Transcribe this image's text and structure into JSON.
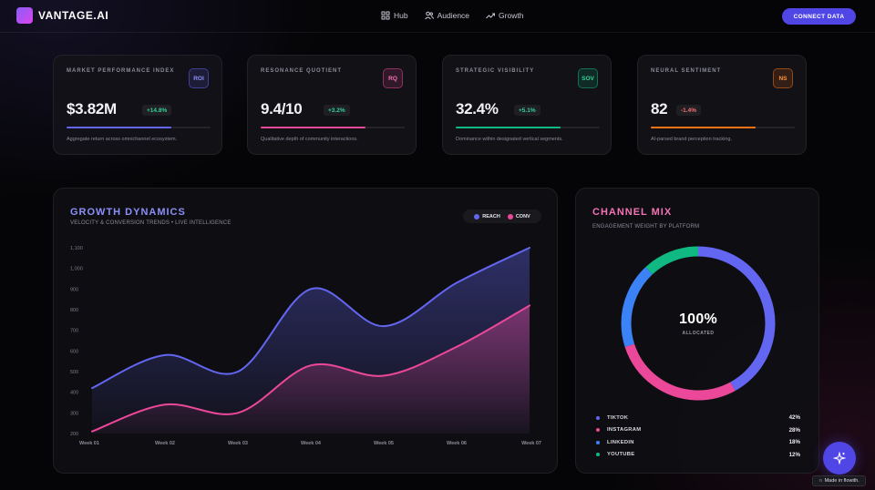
{
  "header": {
    "brand": "VANTAGE.AI",
    "nav": [
      {
        "label": "Hub",
        "icon": "grid-icon"
      },
      {
        "label": "Audience",
        "icon": "users-icon"
      },
      {
        "label": "Growth",
        "icon": "trend-up-icon"
      }
    ],
    "cta": "CONNECT DATA"
  },
  "kpis": [
    {
      "title": "MARKET PERFORMANCE INDEX",
      "badge": "ROI",
      "value": "$3.82M",
      "change": "+14.8%",
      "description": "Aggregate return across omnichannel ecosystem.",
      "color": "#6366f1",
      "progress": 0.73
    },
    {
      "title": "RESONANCE QUOTIENT",
      "badge": "RQ",
      "value": "9.4/10",
      "change": "+3.2%",
      "description": "Qualitative depth of community interactions.",
      "color": "#ec4899",
      "progress": 0.73
    },
    {
      "title": "STRATEGIC VISIBILITY",
      "badge": "SOV",
      "value": "32.4%",
      "change": "+5.1%",
      "description": "Dominance within designated vertical segments.",
      "color": "#10b981",
      "progress": 0.73
    },
    {
      "title": "NEURAL SENTIMENT",
      "badge": "NS",
      "value": "82",
      "change": "-1.4%",
      "description": "AI-parsed brand perception tracking.",
      "color": "#f97316",
      "progress": 0.73
    }
  ],
  "growth": {
    "title": "GROWTH DYNAMICS",
    "subtitle": "VELOCITY & CONVERSION TRENDS • LIVE INTELLIGENCE",
    "legend": [
      {
        "label": "REACH",
        "color": "#6366f1"
      },
      {
        "label": "CONV",
        "color": "#ec4899"
      }
    ]
  },
  "chart_data": {
    "type": "area",
    "categories": [
      "Week 01",
      "Week 02",
      "Week 03",
      "Week 04",
      "Week 05",
      "Week 06",
      "Week 07"
    ],
    "series": [
      {
        "name": "REACH",
        "values": [
          420,
          580,
          500,
          900,
          720,
          930,
          1100
        ],
        "color": "#6366f1"
      },
      {
        "name": "CONV",
        "values": [
          210,
          340,
          300,
          530,
          480,
          620,
          820
        ],
        "color": "#ec4899"
      }
    ],
    "yticks": [
      "200",
      "300",
      "400",
      "500",
      "600",
      "700",
      "800",
      "900",
      "1,000",
      "1,100"
    ],
    "ylim": [
      200,
      1100
    ]
  },
  "mix": {
    "title": "CHANNEL MIX",
    "subtitle": "ENGAGEMENT WEIGHT BY PLATFORM",
    "center_value": "100%",
    "center_label": "ALLOCATED",
    "channels": [
      {
        "name": "TIKTOK",
        "value": "42%",
        "share": 42,
        "color": "#6366f1"
      },
      {
        "name": "INSTAGRAM",
        "value": "28%",
        "share": 28,
        "color": "#ec4899"
      },
      {
        "name": "LINKEDIN",
        "value": "18%",
        "share": 18,
        "color": "#3b82f6"
      },
      {
        "name": "YOUTUBE",
        "value": "12%",
        "share": 12,
        "color": "#10b981"
      }
    ]
  },
  "footer": {
    "made_in": "Made in flowith."
  }
}
